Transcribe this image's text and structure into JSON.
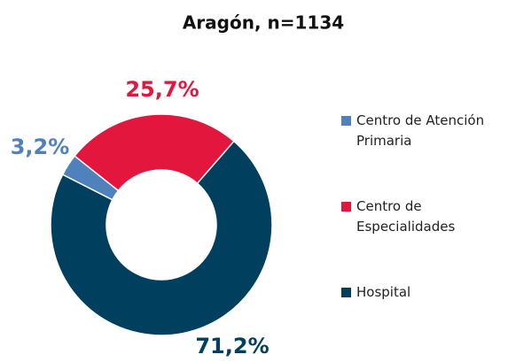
{
  "chart_data": {
    "type": "donut",
    "title": "Aragón, n=1134",
    "categories": [
      "Centro de Atención Primaria",
      "Centro de Especialidades",
      "Hospital"
    ],
    "values": [
      3.2,
      25.7,
      71.2
    ],
    "value_labels": [
      "3,2%",
      "25,7%",
      "71,2%"
    ],
    "colors": [
      "#4f81bd",
      "#e3173e",
      "#00405e"
    ],
    "legend": "right"
  }
}
